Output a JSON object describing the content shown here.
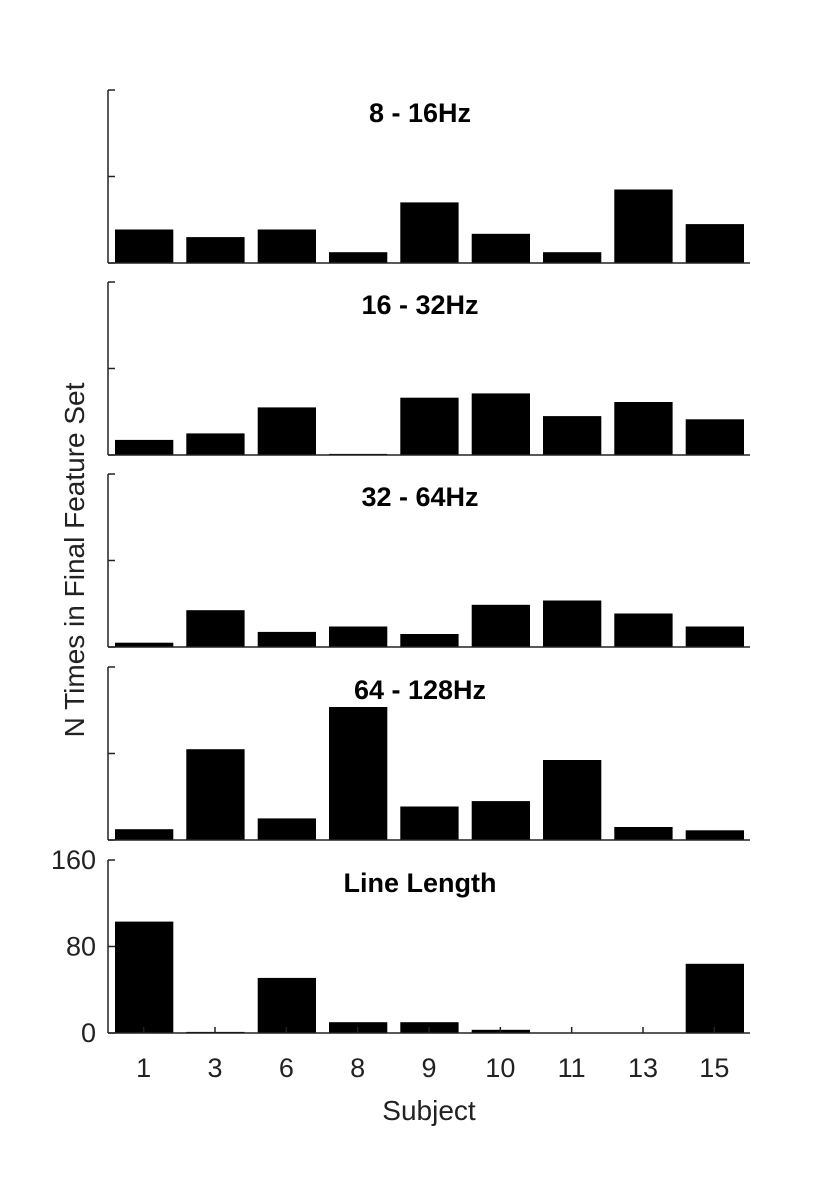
{
  "chart_data": {
    "type": "bar",
    "xlabel": "Subject",
    "ylabel": "N Times in Final Feature Set",
    "categories": [
      "1",
      "3",
      "6",
      "8",
      "9",
      "10",
      "11",
      "13",
      "15"
    ],
    "ylim": [
      0,
      160
    ],
    "yticks": [
      "0",
      "80",
      "160"
    ],
    "bar_color": "#000000",
    "grid": false,
    "panels": [
      {
        "title": "8 - 16Hz",
        "values": [
          31,
          24,
          31,
          10,
          56,
          27,
          10,
          68,
          36
        ]
      },
      {
        "title": "16 - 32Hz",
        "values": [
          14,
          20,
          44,
          1,
          53,
          57,
          36,
          49,
          33
        ]
      },
      {
        "title": "32 - 64Hz",
        "values": [
          4,
          34,
          14,
          19,
          12,
          39,
          43,
          31,
          19
        ]
      },
      {
        "title": "64 - 128Hz",
        "values": [
          10,
          84,
          20,
          123,
          31,
          36,
          74,
          12,
          9
        ]
      },
      {
        "title": "Line Length",
        "values": [
          103,
          1,
          51,
          10,
          10,
          3,
          0,
          0,
          64
        ]
      }
    ]
  }
}
